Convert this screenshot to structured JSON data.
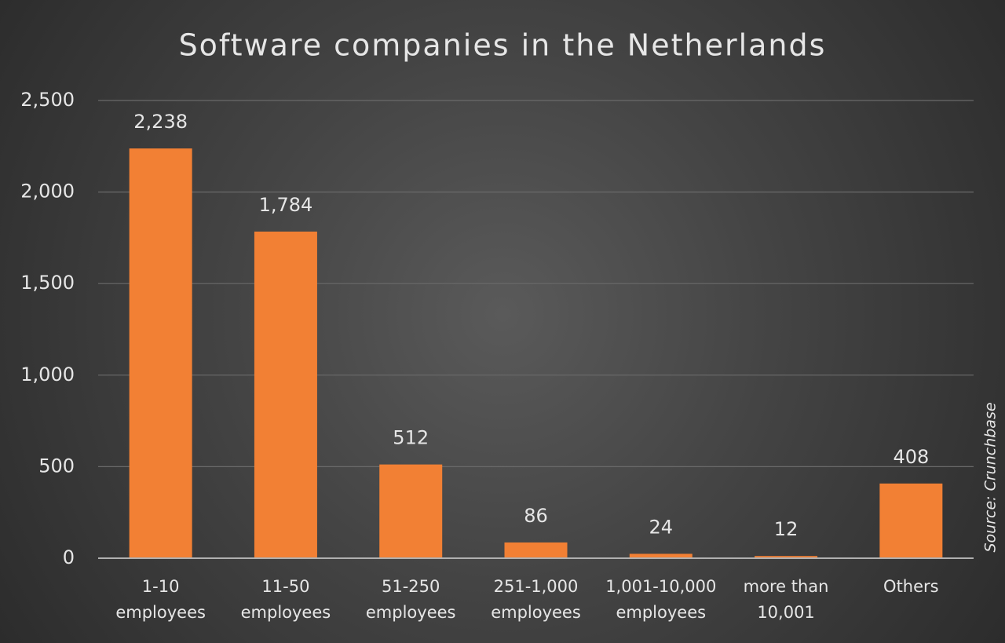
{
  "chart_data": {
    "type": "bar",
    "title": "Software companies in the Netherlands",
    "categories": [
      "1-10\nemployees",
      "11-50\nemployees",
      "51-250\nemployees",
      "251-1,000\nemployees",
      "1,001-10,000\nemployees",
      "more than\n10,001",
      "Others"
    ],
    "values": [
      2238,
      1784,
      512,
      86,
      24,
      12,
      408
    ],
    "value_labels": [
      "2,238",
      "1,784",
      "512",
      "86",
      "24",
      "12",
      "408"
    ],
    "color": "#f28034",
    "ylim": [
      0,
      2500
    ],
    "yticks": [
      0,
      500,
      {
        "value": 1000,
        "label": "1,000"
      },
      {
        "value": 1500,
        "label": "1,500"
      },
      {
        "value": 2000,
        "label": "2,000"
      },
      {
        "value": 2500,
        "label": "2,500"
      }
    ],
    "grid": true,
    "source": "Source: Crunchbase"
  }
}
